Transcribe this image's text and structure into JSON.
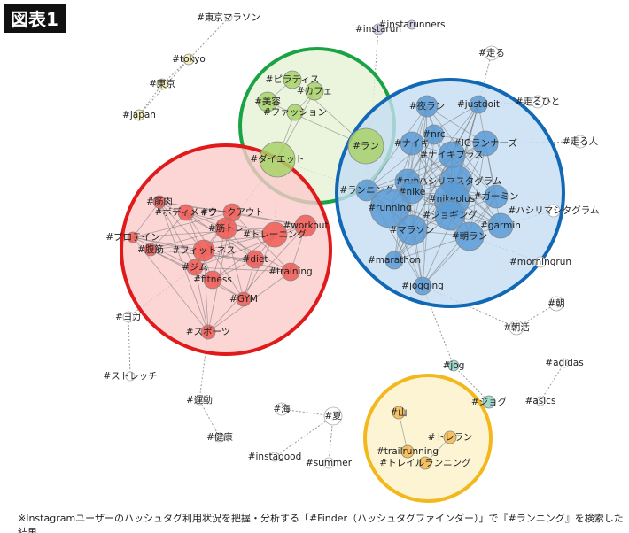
{
  "header": {
    "title": "図表1"
  },
  "nodes": [
    {
      "label": "#東京マラソン"
    },
    {
      "label": "#tokyo"
    },
    {
      "label": "#東京"
    },
    {
      "label": "#japan"
    },
    {
      "label": "#instarun"
    },
    {
      "label": "#instarunners"
    },
    {
      "label": "#走る"
    },
    {
      "label": "#走るひと"
    },
    {
      "label": "#走る人"
    },
    {
      "label": "#ハシリマシタグラム"
    },
    {
      "label": "#morningrun"
    },
    {
      "label": "#朝"
    },
    {
      "label": "#朝活"
    },
    {
      "label": "#adidas"
    },
    {
      "label": "#asics"
    },
    {
      "label": "#jog"
    },
    {
      "label": "#ジョグ"
    },
    {
      "label": "#ヨガ"
    },
    {
      "label": "#ストレッチ"
    },
    {
      "label": "#運動"
    },
    {
      "label": "#健康"
    },
    {
      "label": "#海"
    },
    {
      "label": "#夏"
    },
    {
      "label": "#instagood"
    },
    {
      "label": "#summer"
    },
    {
      "label": "#ピラティス"
    },
    {
      "label": "#カフェ"
    },
    {
      "label": "#美容"
    },
    {
      "label": "#ファッション"
    },
    {
      "label": "#ラン"
    },
    {
      "label": "#ダイエット"
    },
    {
      "label": "#筋肉"
    },
    {
      "label": "#ボディメイク"
    },
    {
      "label": "#ワークアウト"
    },
    {
      "label": "#筋トレ"
    },
    {
      "label": "#workout"
    },
    {
      "label": "#トレーニング"
    },
    {
      "label": "#プロテイン"
    },
    {
      "label": "#腹筋"
    },
    {
      "label": "#フィットネス"
    },
    {
      "label": "#diet"
    },
    {
      "label": "#ジム"
    },
    {
      "label": "#fitness"
    },
    {
      "label": "#training"
    },
    {
      "label": "#GYM"
    },
    {
      "label": "#スポーツ"
    },
    {
      "label": "#夜ラン"
    },
    {
      "label": "#justdoit"
    },
    {
      "label": "#nrc"
    },
    {
      "label": "#ナイキ"
    },
    {
      "label": "#IGランナーズ"
    },
    {
      "label": "#ナイキプラス"
    },
    {
      "label": "#ランニング"
    },
    {
      "label": "#ハシリマスタグラム"
    },
    {
      "label": "#run"
    },
    {
      "label": "#nike"
    },
    {
      "label": "#ガーミン"
    },
    {
      "label": "#nikeplus"
    },
    {
      "label": "#running"
    },
    {
      "label": "#ジョギング"
    },
    {
      "label": "#マラソン"
    },
    {
      "label": "#garmin"
    },
    {
      "label": "#朝ラン"
    },
    {
      "label": "#marathon"
    },
    {
      "label": "#jogging"
    },
    {
      "label": "#山"
    },
    {
      "label": "#トレラン"
    },
    {
      "label": "#trailrunning"
    },
    {
      "label": "#トレイルランニング"
    }
  ],
  "footer": {
    "caption": "※Instagramユーザーのハッシュタグ利用状況を把握・分析する「#Finder（ハッシュタグファインダー）」で『#ランニング』を検索した結果"
  }
}
